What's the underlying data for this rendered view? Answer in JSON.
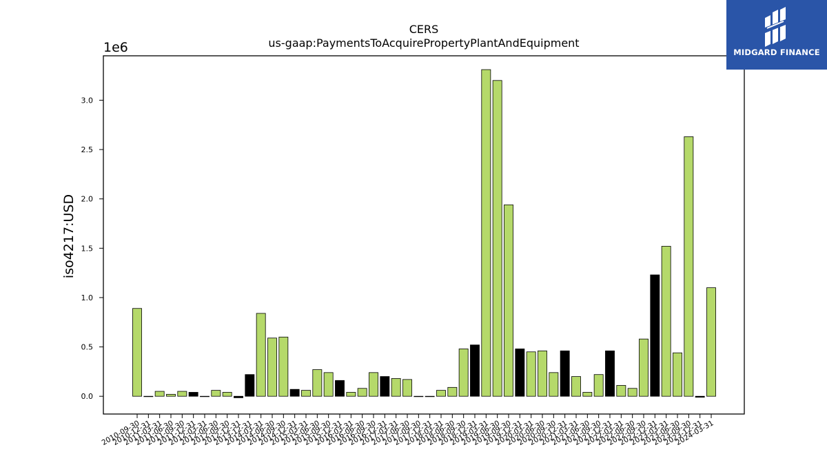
{
  "chart_data": {
    "type": "bar",
    "title": "CERS",
    "subtitle": "us-gaap:PaymentsToAcquirePropertyPlantAndEquipment",
    "ylabel": "iso4217:USD",
    "xlabel": "",
    "scale_label": "1e6",
    "scale_factor": 1000000,
    "ylim": [
      -0.18,
      3.45
    ],
    "yticks": [
      "0.0",
      "0.5",
      "1.0",
      "1.5",
      "2.0",
      "2.5",
      "3.0"
    ],
    "grid": false,
    "colors": {
      "quarter": "#b5d96a",
      "fiscal_year": "#000000",
      "edge": "#000000"
    },
    "categories": [
      "2010-09-30",
      "2010-12-31",
      "2011-03-31",
      "2011-06-30",
      "2011-09-30",
      "2011-12-31",
      "2012-03-31",
      "2012-06-30",
      "2012-09-30",
      "2012-12-31",
      "2013-12-31",
      "2014-03-31",
      "2014-06-30",
      "2014-09-30",
      "2014-12-31",
      "2015-03-31",
      "2015-06-30",
      "2015-09-30",
      "2015-12-31",
      "2016-03-31",
      "2016-06-30",
      "2016-09-30",
      "2016-12-31",
      "2017-03-31",
      "2017-06-30",
      "2017-09-30",
      "2017-12-31",
      "2018-03-31",
      "2018-06-30",
      "2018-09-30",
      "2018-12-31",
      "2019-03-31",
      "2019-06-30",
      "2019-09-30",
      "2019-12-31",
      "2020-03-31",
      "2020-06-30",
      "2020-09-30",
      "2020-12-31",
      "2021-03-31",
      "2021-06-30",
      "2021-09-30",
      "2021-12-31",
      "2022-03-31",
      "2022-06-30",
      "2022-09-30",
      "2022-12-31",
      "2023-03-31",
      "2023-06-30",
      "2023-09-30",
      "2023-12-31",
      "2024-03-31"
    ],
    "values": [
      0.89,
      0.0,
      0.05,
      0.02,
      0.05,
      0.04,
      0.0,
      0.06,
      0.04,
      -0.015,
      0.22,
      0.84,
      0.59,
      0.6,
      0.07,
      0.06,
      0.27,
      0.24,
      0.16,
      0.04,
      0.08,
      0.24,
      0.2,
      0.18,
      0.17,
      0.0,
      0.0,
      0.06,
      0.09,
      0.48,
      0.52,
      3.31,
      3.2,
      1.94,
      0.48,
      0.45,
      0.46,
      0.24,
      0.46,
      0.2,
      0.04,
      0.22,
      0.46,
      0.11,
      0.08,
      0.58,
      1.23,
      1.52,
      0.44,
      2.63,
      -0.01,
      1.1
    ],
    "bar_type": [
      "q",
      "q",
      "q",
      "q",
      "q",
      "fy",
      "q",
      "q",
      "q",
      "fy",
      "fy",
      "q",
      "q",
      "q",
      "fy",
      "q",
      "q",
      "q",
      "fy",
      "q",
      "q",
      "q",
      "fy",
      "q",
      "q",
      "q",
      "q",
      "q",
      "q",
      "q",
      "fy",
      "q",
      "q",
      "q",
      "fy",
      "q",
      "q",
      "q",
      "fy",
      "q",
      "q",
      "q",
      "fy",
      "q",
      "q",
      "q",
      "fy",
      "q",
      "q",
      "q",
      "fy",
      "q"
    ]
  },
  "logo": {
    "text": "MIDGARD FINANCE",
    "icon": "midgard-logo-icon"
  }
}
